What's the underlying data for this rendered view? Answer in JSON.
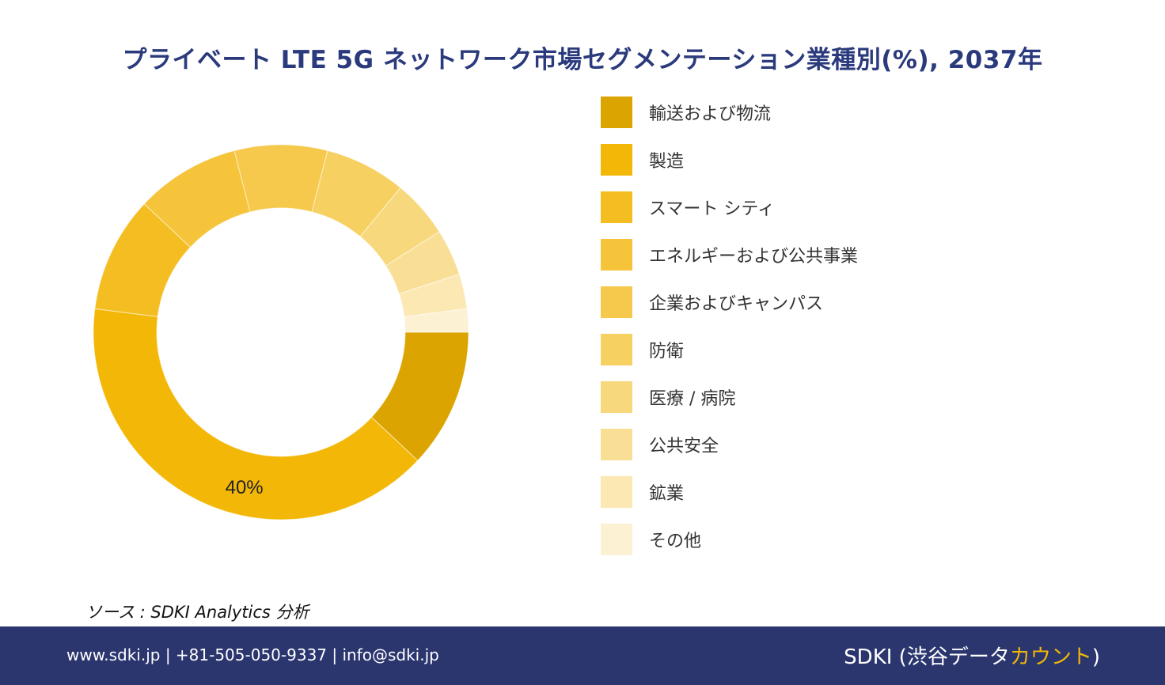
{
  "title": "プライベート LTE 5G ネットワーク市場セグメンテーション業種別(%), 2037年",
  "chart_data": {
    "type": "pie",
    "style": "donut",
    "title": "プライベート LTE 5G ネットワーク市場セグメンテーション業種別(%), 2037年",
    "labels": [
      "輸送および物流",
      "製造",
      "スマート シティ",
      "エネルギーおよび公共事業",
      "企業およびキャンパス",
      "防衛",
      "医療 / 病院",
      "公共安全",
      "鉱業",
      "その他"
    ],
    "values": [
      12,
      40,
      10,
      9,
      8,
      7,
      5,
      4,
      3,
      2
    ],
    "colors": [
      "#dba400",
      "#f3b708",
      "#f4be23",
      "#f5c43a",
      "#f6c94d",
      "#f7d062",
      "#f8d87c",
      "#f9df96",
      "#fbe8b3",
      "#fdf1d4"
    ],
    "data_labels": [
      {
        "index": 1,
        "text": "40%"
      }
    ],
    "legend": "right"
  },
  "legend": [
    {
      "label": "輸送および物流",
      "color": "#dba400"
    },
    {
      "label": "製造",
      "color": "#f3b708"
    },
    {
      "label": "スマート シティ",
      "color": "#f4be23"
    },
    {
      "label": "エネルギーおよび公共事業",
      "color": "#f5c43a"
    },
    {
      "label": "企業およびキャンパス",
      "color": "#f6c94d"
    },
    {
      "label": "防衛",
      "color": "#f7d062"
    },
    {
      "label": "医療 / 病院",
      "color": "#f8d87c"
    },
    {
      "label": "公共安全",
      "color": "#f9df96"
    },
    {
      "label": "鉱業",
      "color": "#fbe8b3"
    },
    {
      "label": "その他",
      "color": "#fdf1d4"
    }
  ],
  "source": "ソース : SDKI Analytics 分析",
  "footer": {
    "contact": "www.sdki.jp | +81-505-050-9337 | info@sdki.jp",
    "brand_main": "SDKI (渋谷データ",
    "brand_accent": "カウント",
    "brand_end": ")"
  }
}
